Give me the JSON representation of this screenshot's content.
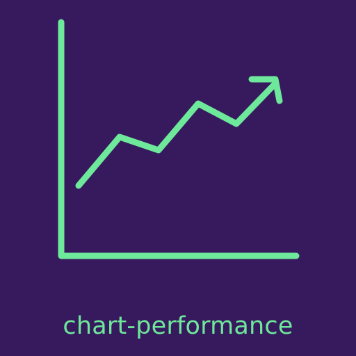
{
  "icon": {
    "name": "chart-performance-icon",
    "caption": "chart-performance"
  },
  "colors": {
    "background": "#371a5e",
    "accent": "#6ee89a"
  }
}
